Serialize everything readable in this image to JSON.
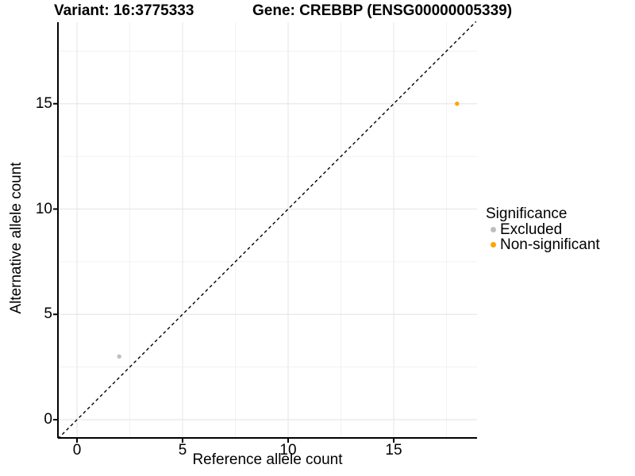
{
  "titles": {
    "variant": "Variant: 16:3775333",
    "gene": "Gene: CREBBP (ENSG00000005339)"
  },
  "axes": {
    "x": {
      "label": "Reference allele count",
      "ticks": [
        0,
        5,
        10,
        15
      ]
    },
    "y": {
      "label": "Alternative allele count",
      "ticks": [
        0,
        5,
        10,
        15
      ]
    }
  },
  "legend": {
    "title": "Significance",
    "items": [
      {
        "label": "Excluded",
        "color": "#BEBEBE"
      },
      {
        "label": "Non-significant",
        "color": "#FFA500"
      }
    ]
  },
  "chart_data": {
    "type": "scatter",
    "title": "Variant: 16:3775333    Gene: CREBBP (ENSG00000005339)",
    "xlabel": "Reference allele count",
    "ylabel": "Alternative allele count",
    "xlim": [
      -0.9,
      18.95
    ],
    "ylim": [
      -0.9,
      18.9
    ],
    "xticks": [
      0,
      5,
      10,
      15
    ],
    "yticks": [
      0,
      5,
      10,
      15
    ],
    "minor_step": 2.5,
    "grid": true,
    "grid_major_color": "#e8e8e8",
    "grid_minor_color": "#f1f1f1",
    "axis_line_color": "#000000",
    "identity_line": {
      "style": "dashed",
      "color": "#000000",
      "slope": 1,
      "intercept": 0
    },
    "series": [
      {
        "name": "Excluded",
        "color": "#BEBEBE",
        "points": [
          [
            2,
            3
          ]
        ]
      },
      {
        "name": "Non-significant",
        "color": "#FFA500",
        "points": [
          [
            18,
            15
          ]
        ]
      }
    ],
    "legend_title": "Significance",
    "legend_position": "right"
  }
}
